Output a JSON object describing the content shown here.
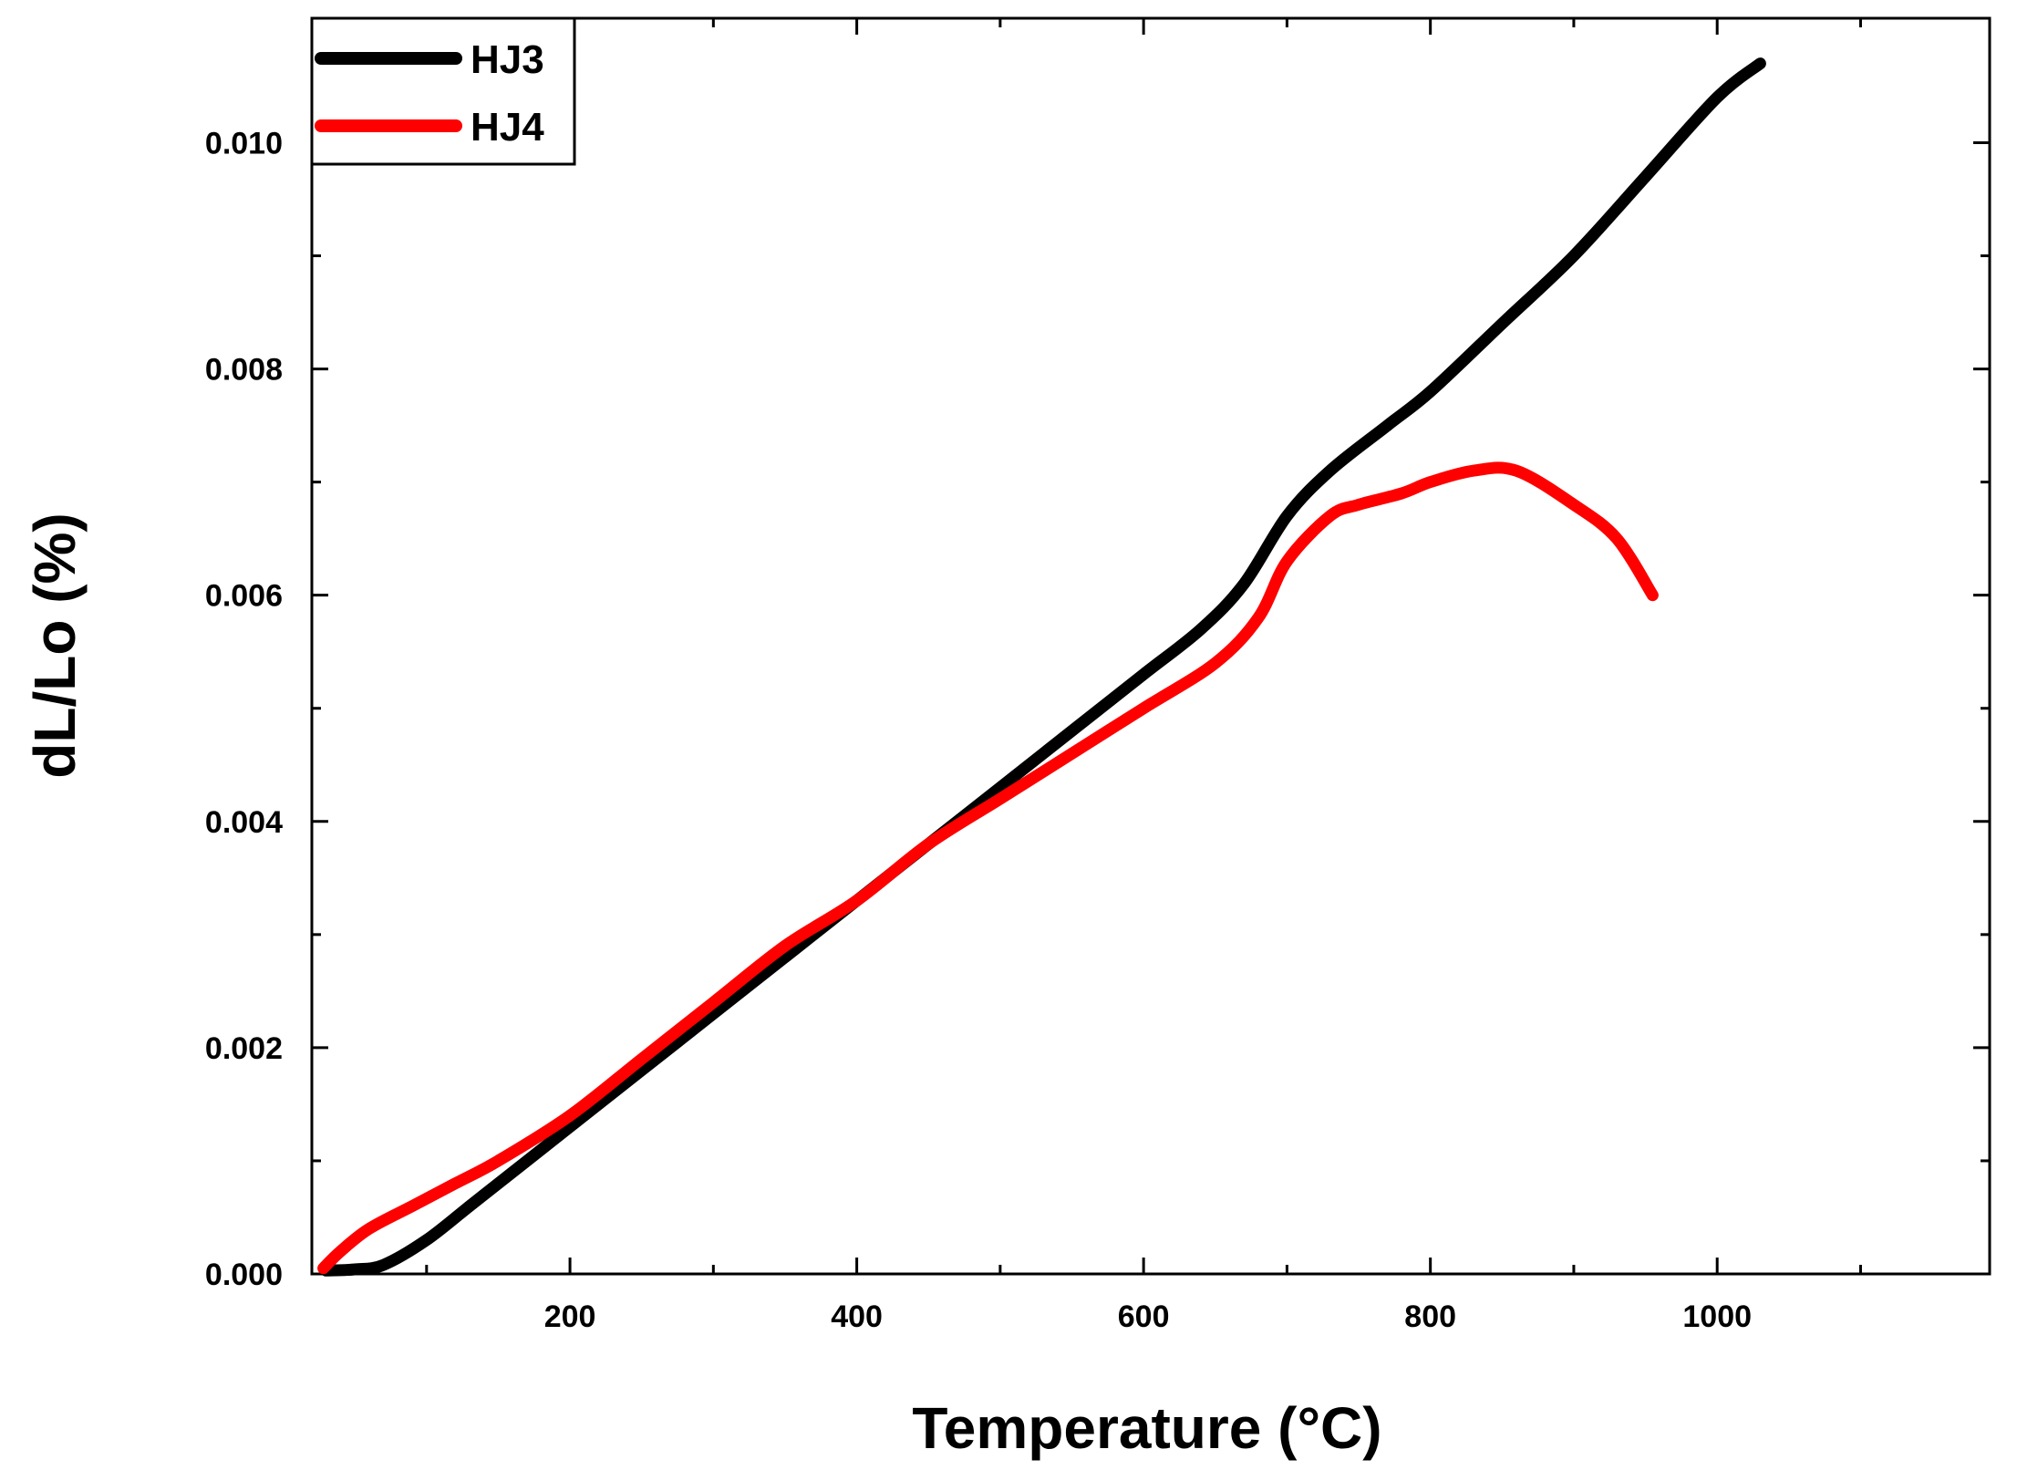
{
  "chart_data": {
    "type": "line",
    "title": "",
    "xlabel": "Temperature (°C)",
    "ylabel": "dL/Lo (%)",
    "xlim": [
      20,
      1190
    ],
    "ylim": [
      0,
      0.0111
    ],
    "x_ticks": [
      200,
      400,
      600,
      800,
      1000
    ],
    "x_tick_labels": [
      "200",
      "400",
      "600",
      "800",
      "1000"
    ],
    "x_minor_ticks": [
      100,
      300,
      500,
      700,
      900,
      1100
    ],
    "y_ticks": [
      0,
      0.002,
      0.004,
      0.006,
      0.008,
      0.01
    ],
    "y_tick_labels": [
      "0.000",
      "0.002",
      "0.004",
      "0.006",
      "0.008",
      "0.010"
    ],
    "y_minor_ticks": [
      0.001,
      0.003,
      0.005,
      0.007,
      0.009
    ],
    "grid": false,
    "legend_position": "top-left",
    "series": [
      {
        "name": "HJ3",
        "color": "#000000",
        "x": [
          30,
          50,
          70,
          100,
          130,
          160,
          200,
          250,
          300,
          350,
          400,
          450,
          500,
          550,
          600,
          640,
          670,
          700,
          730,
          770,
          800,
          850,
          900,
          950,
          1000,
          1030
        ],
        "y": [
          3e-05,
          4e-05,
          8e-05,
          0.0003,
          0.0006,
          0.0009,
          0.0013,
          0.0018,
          0.0023,
          0.0028,
          0.0033,
          0.0038,
          0.0043,
          0.0048,
          0.0053,
          0.0057,
          0.0061,
          0.0067,
          0.0071,
          0.0075,
          0.0078,
          0.0084,
          0.009,
          0.0097,
          0.0104,
          0.0107
        ]
      },
      {
        "name": "HJ4",
        "color": "#ff0000",
        "x": [
          28,
          40,
          60,
          90,
          120,
          150,
          200,
          250,
          300,
          350,
          400,
          450,
          500,
          550,
          600,
          650,
          680,
          700,
          730,
          750,
          780,
          800,
          830,
          860,
          900,
          930,
          955
        ],
        "y": [
          5e-05,
          0.0002,
          0.0004,
          0.0006,
          0.0008,
          0.001,
          0.0014,
          0.0019,
          0.0024,
          0.0029,
          0.0033,
          0.0038,
          0.0042,
          0.0046,
          0.005,
          0.0054,
          0.0058,
          0.0063,
          0.0067,
          0.0068,
          0.0069,
          0.007,
          0.0071,
          0.0071,
          0.0068,
          0.0065,
          0.006
        ]
      }
    ]
  }
}
